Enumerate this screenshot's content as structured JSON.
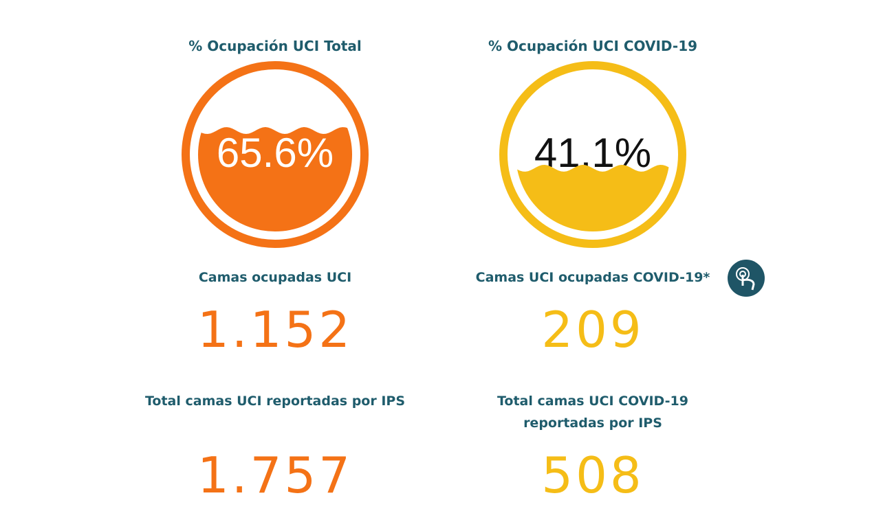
{
  "gauges": [
    {
      "title": "% Ocupación UCI Total",
      "value": 65.6,
      "label": "65.6%",
      "color": "#f47216"
    },
    {
      "title": "% Ocupación UCI COVID-19",
      "value": 41.1,
      "label": "41.1%",
      "color": "#f5bd17"
    }
  ],
  "cards": [
    {
      "label": "Camas ocupadas UCI",
      "value": "1.152"
    },
    {
      "label": "Camas UCI ocupadas COVID-19*",
      "value": "209"
    },
    {
      "label": "Total camas UCI reportadas por IPS",
      "value": "1.757"
    },
    {
      "label": "Total camas UCI COVID-19 reportadas por IPS",
      "value": "508"
    }
  ]
}
